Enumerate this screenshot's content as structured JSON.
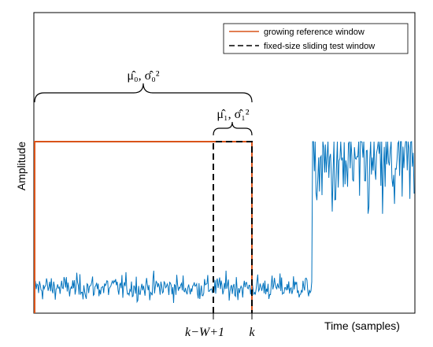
{
  "chart_data": {
    "type": "line",
    "ylabel": "Amplitude",
    "xlabel": "Time (samples)",
    "legend": {
      "placement": "top-right",
      "entries": [
        {
          "label": "growing reference window",
          "color": "#d95319",
          "style": "solid"
        },
        {
          "label": "fixed-size sliding test window",
          "color": "#000000",
          "style": "dashed"
        }
      ]
    },
    "brace_labels": {
      "reference": "μ̂₀, σ̂₀²",
      "test": "μ̂₁, σ̂₁²"
    },
    "tick_labels": {
      "window_start": "k−W+1",
      "window_end": "k"
    },
    "signal": {
      "color": "#0072bd",
      "low_regime": {
        "samples": 350,
        "mean": 0.15,
        "spread": 0.15
      },
      "high_regime": {
        "samples": 120,
        "mean": 0.85,
        "spread": 0.65
      }
    },
    "grid": false
  },
  "colors": {
    "reference": "#d95319",
    "test": "#000000",
    "signal": "#0072bd"
  }
}
